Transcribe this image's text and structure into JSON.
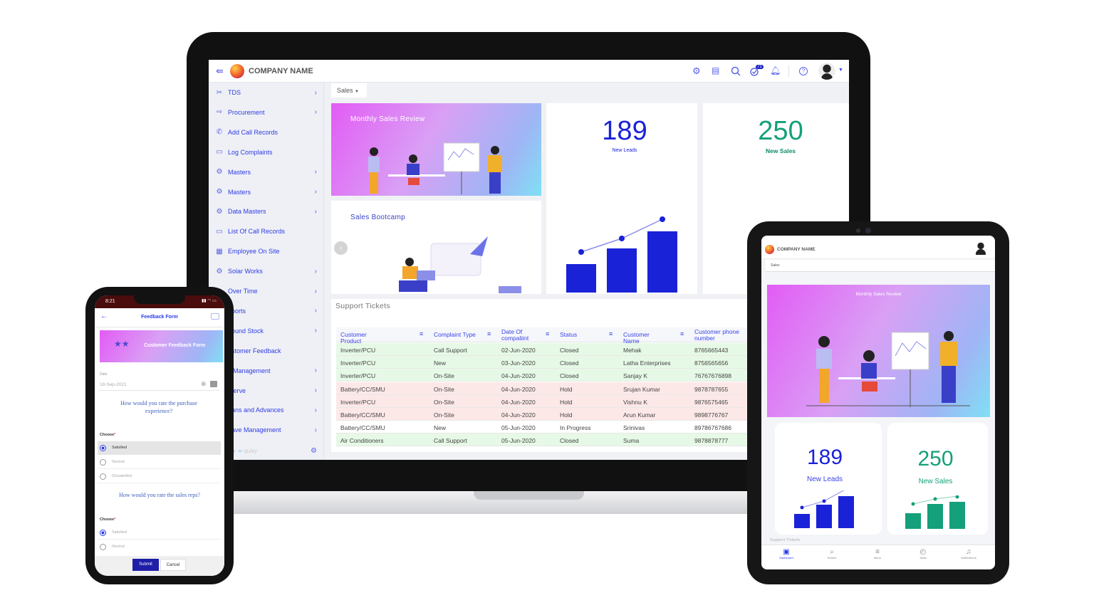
{
  "laptop": {
    "header": {
      "company_name": "COMPANY NAME",
      "tasks_badge": "71",
      "icons": [
        "menu-collapse-icon",
        "settings-icon",
        "store-icon",
        "search-icon",
        "tasks-icon",
        "bell-icon",
        "help-icon",
        "avatar"
      ]
    },
    "sidebar": {
      "items": [
        {
          "label": "TDS",
          "icon": "scissors-icon",
          "chevron": true
        },
        {
          "label": "Procurement",
          "icon": "procurement-icon",
          "chevron": true
        },
        {
          "label": "Add Call Records",
          "icon": "phone-icon",
          "chevron": false
        },
        {
          "label": "Log Complaints",
          "icon": "calendar-icon",
          "chevron": false
        },
        {
          "label": "Masters",
          "icon": "gears-icon",
          "chevron": true
        },
        {
          "label": "Masters",
          "icon": "gears-icon",
          "chevron": true
        },
        {
          "label": "Data Masters",
          "icon": "gears-icon",
          "chevron": true
        },
        {
          "label": "List Of Call Records",
          "icon": "monitor-icon",
          "chevron": false
        },
        {
          "label": "Employee On Site",
          "icon": "building-icon",
          "chevron": false
        },
        {
          "label": "Solar Works",
          "icon": "gear-icon",
          "chevron": true
        },
        {
          "label": "Over Time",
          "icon": "clock-icon",
          "chevron": true
        },
        {
          "label": "eports",
          "icon": "",
          "chevron": true
        },
        {
          "label": "bound Stock",
          "icon": "",
          "chevron": true
        },
        {
          "label": "ustomer Feedback",
          "icon": "",
          "chevron": false
        },
        {
          "label": "it Management",
          "icon": "",
          "chevron": true
        },
        {
          "label": "rserve",
          "icon": "",
          "chevron": true
        },
        {
          "label": "oans and Advances",
          "icon": "",
          "chevron": true
        },
        {
          "label": "eave Management",
          "icon": "",
          "chevron": true
        }
      ],
      "footer": {
        "powered_by": "by",
        "brand": "quixy"
      }
    },
    "main": {
      "dropdown": "Sales",
      "banner1_title": "Monthly Sales Review",
      "banner2_title": "Sales Bootcamp",
      "stat1": {
        "value": "189",
        "label": "New Leads",
        "color": "#1a22d8"
      },
      "stat2": {
        "value": "250",
        "label": "New Sales",
        "color": "#14a07a"
      },
      "tickets": {
        "title": "Support Tickets",
        "columns": [
          "Customer Product",
          "Complaint Type",
          "Date Of compaliint",
          "Status",
          "Customer Name",
          "Customer phone number"
        ],
        "rows": [
          {
            "c": [
              "Inverter/PCU",
              "Call Support",
              "02-Jun-2020",
              "Closed",
              "Mehak",
              "8765665443"
            ],
            "tone": "green"
          },
          {
            "c": [
              "Inverter/PCU",
              "New",
              "03-Jun-2020",
              "Closed",
              "Latha Enterprises",
              "8756565656"
            ],
            "tone": "green"
          },
          {
            "c": [
              "Inverter/PCU",
              "On-Site",
              "04-Jun-2020",
              "Closed",
              "Sanjay K",
              "76767676898"
            ],
            "tone": "green"
          },
          {
            "c": [
              "Battery/CC/SMU",
              "On-Site",
              "04-Jun-2020",
              "Hold",
              "Srujan Kumar",
              "9878787655"
            ],
            "tone": "red"
          },
          {
            "c": [
              "Inverter/PCU",
              "On-Site",
              "04-Jun-2020",
              "Hold",
              "Vishnu K",
              "9876575465"
            ],
            "tone": "red"
          },
          {
            "c": [
              "Battery/CC/SMU",
              "On-Site",
              "04-Jun-2020",
              "Hold",
              "Arun Kumar",
              "9898776767"
            ],
            "tone": "red"
          },
          {
            "c": [
              "Battery/CC/SMU",
              "New",
              "05-Jun-2020",
              "In Progress",
              "Srinivas",
              "89786767686"
            ],
            "tone": "white"
          },
          {
            "c": [
              "Air Conditioners",
              "Call Support",
              "05-Jun-2020",
              "Closed",
              "Suma",
              "9878878777"
            ],
            "tone": "green"
          }
        ]
      }
    }
  },
  "phone": {
    "time": "8:21",
    "title": "Feedback Form",
    "banner": "Customer Feedback Form",
    "date_label": "Date",
    "date_value": "18-Sep-2021",
    "q1": "How would you rate the purchase experience?",
    "q2": "How would you rate the sales reps?",
    "choose_label": "Choose",
    "q1_options": [
      {
        "label": "Satisfied",
        "selected": true
      },
      {
        "label": "Neutral",
        "selected": false
      },
      {
        "label": "Dissatisfied",
        "selected": false
      }
    ],
    "q2_options": [
      {
        "label": "Satisfied",
        "selected": true
      },
      {
        "label": "Neutral",
        "selected": false
      }
    ],
    "submit": "Submit",
    "cancel": "Cancel"
  },
  "tablet": {
    "company_name": "COMPANY NAME",
    "tab": "Sales",
    "banner_title": "Monthly Sales Review",
    "stat1": {
      "value": "189",
      "label": "New Leads"
    },
    "stat2": {
      "value": "250",
      "label": "New Sales"
    },
    "section": "Support Tickets",
    "nav": [
      {
        "label": "Dashboard",
        "icon": "dashboard-icon",
        "active": true
      },
      {
        "label": "Search",
        "icon": "search-icon"
      },
      {
        "label": "Menu",
        "icon": "menu-icon"
      },
      {
        "label": "Tasks",
        "icon": "tasks-icon"
      },
      {
        "label": "Notifications",
        "icon": "bell-icon"
      }
    ]
  }
}
